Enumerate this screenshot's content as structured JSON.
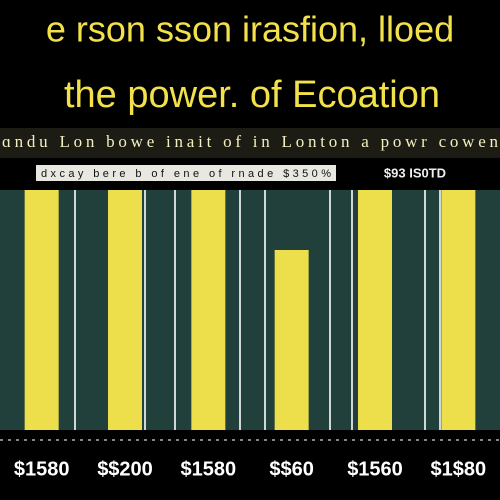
{
  "chart_data": {
    "type": "bar",
    "title": "e rson sson irasfion, lloed",
    "subtitle": "the power. of Ecoation",
    "caption": "ɑndu Lon bowe inait of in Lonton a powr cowen",
    "note": "dxcay bere b of ene of rnade $350%",
    "note_right": "$93 IS0TD",
    "categories": [
      "$1580",
      "$$200",
      "$1580",
      "$$60",
      "$1560",
      "$1$80"
    ],
    "values": [
      100,
      100,
      100,
      75,
      100,
      100
    ],
    "color": "#ecdf4b"
  }
}
